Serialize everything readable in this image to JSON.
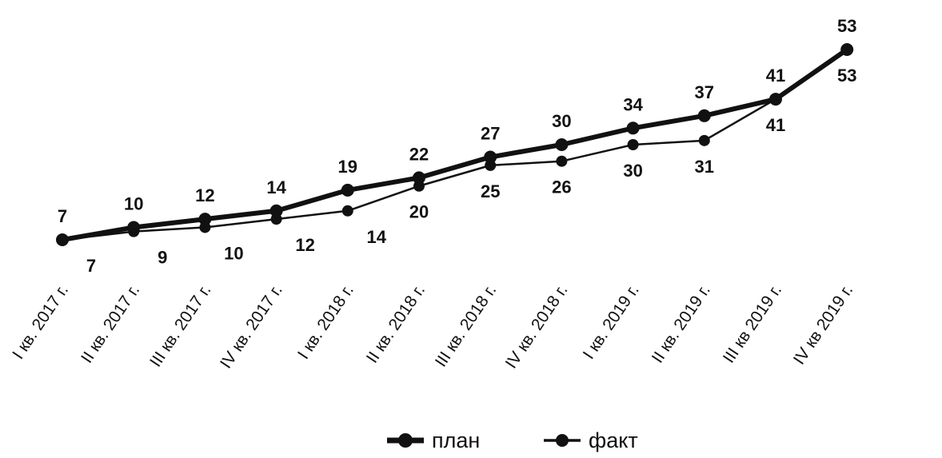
{
  "chart_data": {
    "type": "line",
    "title": "",
    "xlabel": "",
    "ylabel": "",
    "categories": [
      "I кв. 2017 г.",
      "II кв. 2017 г.",
      "III кв. 2017 г.",
      "IV кв. 2017 г.",
      "I кв. 2018 г.",
      "II кв. 2018 г.",
      "III кв. 2018 г.",
      "IV кв. 2018 г.",
      "I кв. 2019 г.",
      "II кв. 2019 г.",
      "III кв 2019 г.",
      "IV кв 2019 г."
    ],
    "series": [
      {
        "name": "план",
        "values": [
          7,
          10,
          12,
          14,
          19,
          22,
          27,
          30,
          34,
          37,
          41,
          53
        ],
        "color": "#111111",
        "emphasis": "thick"
      },
      {
        "name": "факт",
        "values": [
          7,
          9,
          10,
          12,
          14,
          20,
          25,
          26,
          30,
          31,
          41,
          53
        ],
        "color": "#111111",
        "emphasis": "thin"
      }
    ],
    "ylim": [
      0,
      60
    ],
    "grid": false,
    "legend": "bottom-center"
  }
}
